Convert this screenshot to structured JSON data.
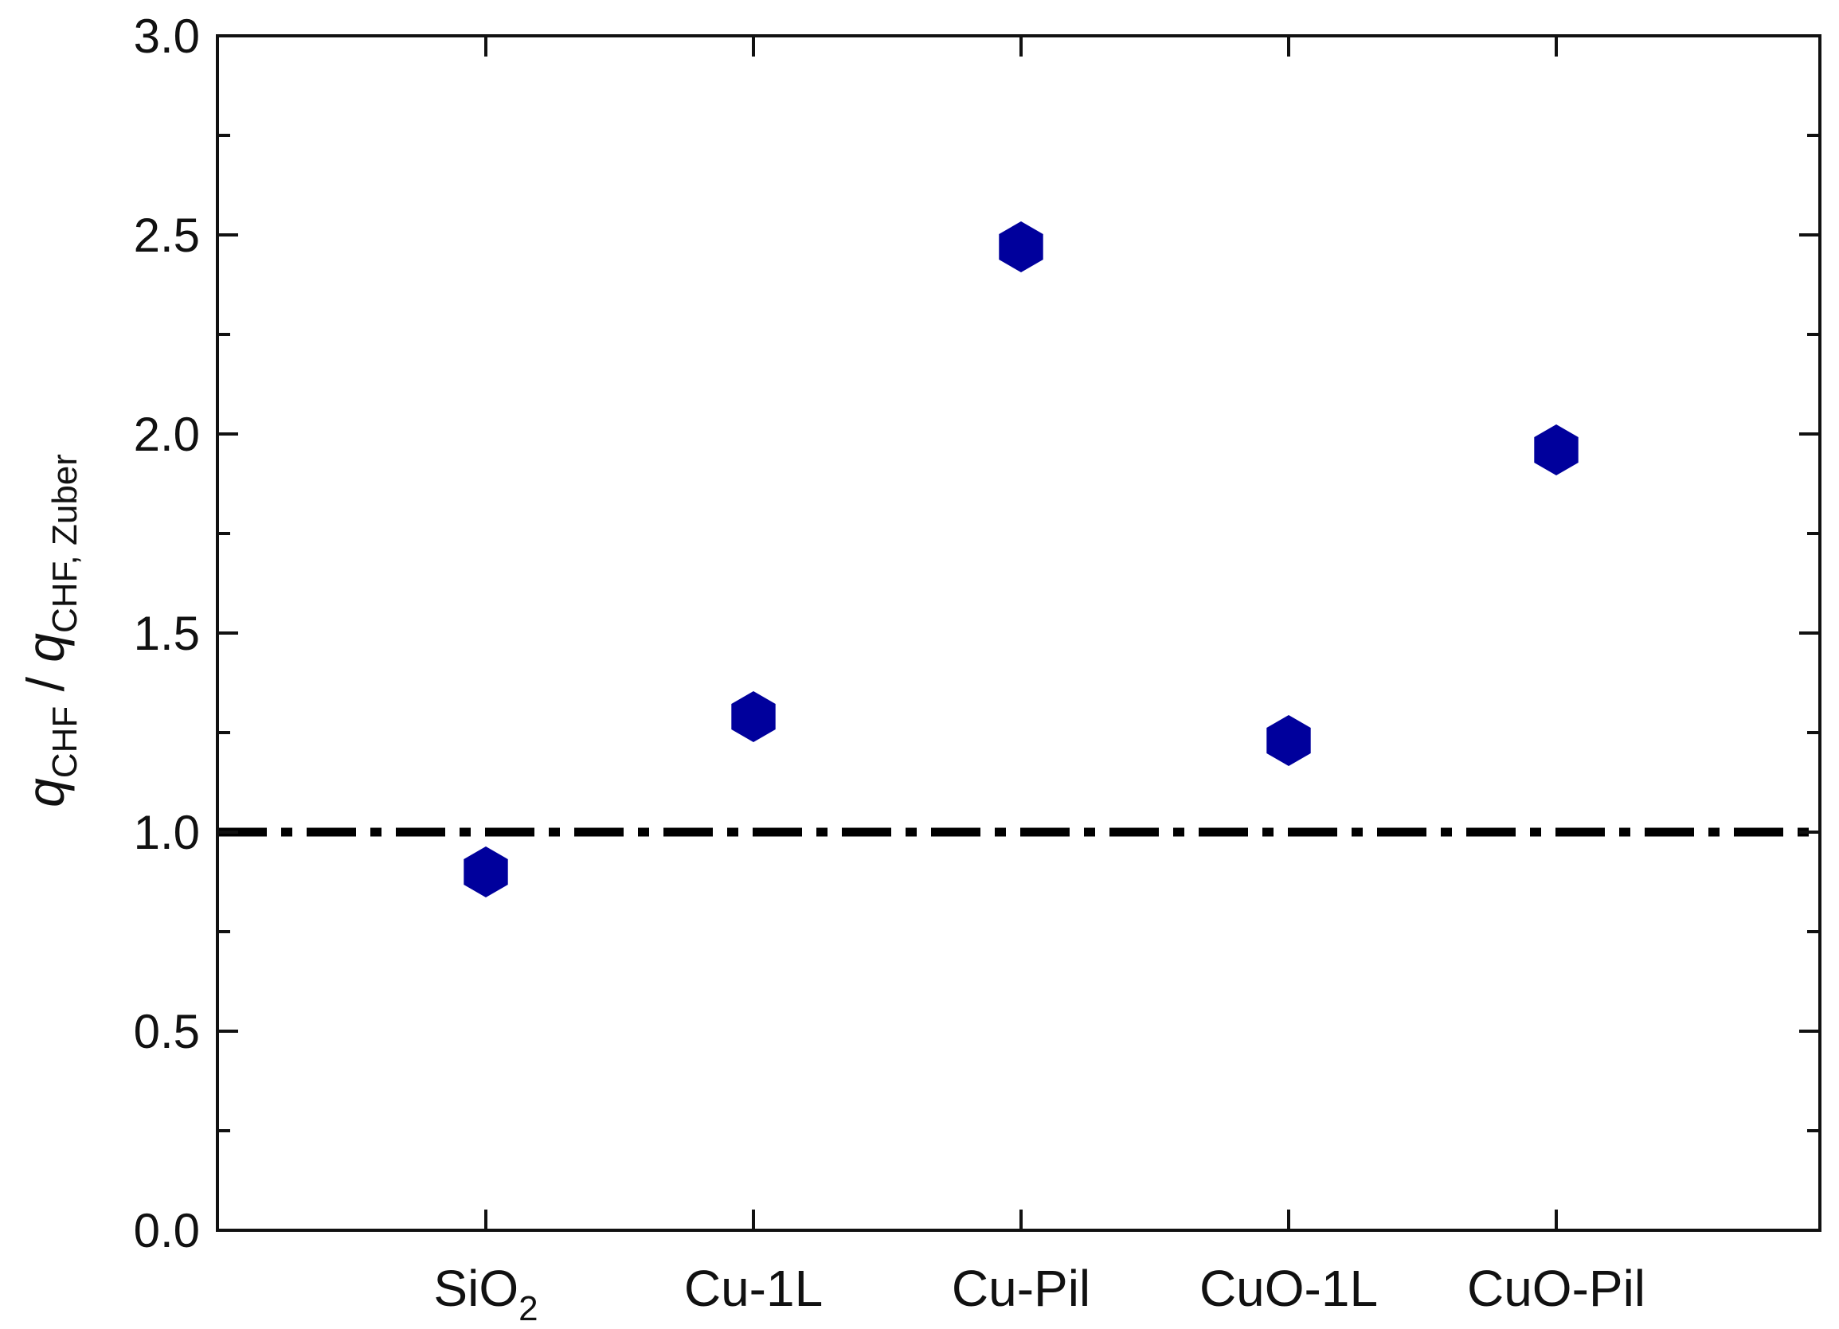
{
  "chart_data": {
    "type": "scatter",
    "categories": [
      {
        "name": "SiO",
        "sub": "2"
      },
      {
        "name": "Cu-1L",
        "sub": ""
      },
      {
        "name": "Cu-Pil",
        "sub": ""
      },
      {
        "name": "CuO-1L",
        "sub": ""
      },
      {
        "name": "CuO-Pil",
        "sub": ""
      }
    ],
    "values": [
      0.9,
      1.29,
      2.47,
      1.23,
      1.96
    ],
    "ylabel": {
      "q1": "q",
      "sub1": "CHF",
      "slash": " / ",
      "q2": "q",
      "sub2": "CHF, Zuber"
    },
    "ylim": [
      0.0,
      3.0
    ],
    "yticks": [
      "0.0",
      "0.5",
      "1.0",
      "1.5",
      "2.0",
      "2.5",
      "3.0"
    ],
    "reference_line": {
      "y": 1.0,
      "style": "dash-dot"
    },
    "marker": "hexagon",
    "grid": false,
    "legend": "none",
    "colors": {
      "marker": "#00009c",
      "axis": "#111111",
      "reference_line": "#000000"
    }
  }
}
